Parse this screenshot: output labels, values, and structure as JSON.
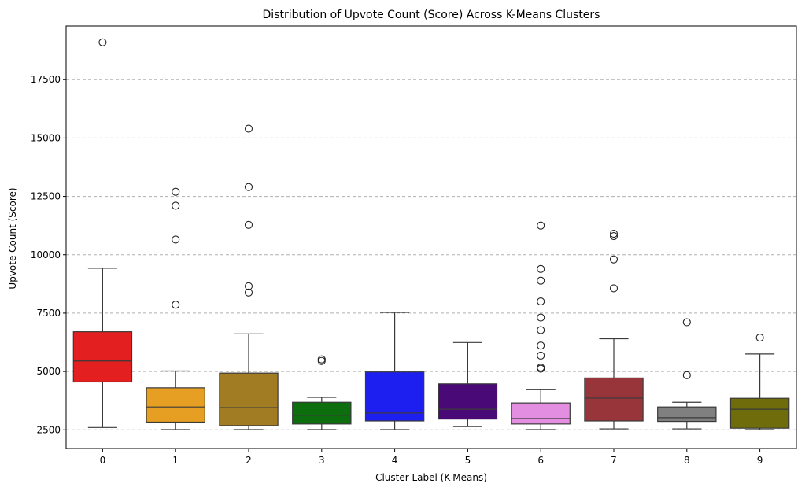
{
  "chart_data": {
    "type": "box",
    "title": "Distribution of Upvote Count (Score) Across K-Means Clusters",
    "xlabel": "Cluster Label (K-Means)",
    "ylabel": "Upvote Count (Score)",
    "ylim": [
      1700,
      19800
    ],
    "yticks": [
      2500,
      5000,
      7500,
      10000,
      12500,
      15000,
      17500
    ],
    "grid": "y-dashed",
    "categories": [
      "0",
      "1",
      "2",
      "3",
      "4",
      "5",
      "6",
      "7",
      "8",
      "9"
    ],
    "boxes": [
      {
        "category": "0",
        "color": "#e41f1f",
        "whisker_low": 2600,
        "q1": 4550,
        "median": 5450,
        "q3": 6700,
        "whisker_high": 9420,
        "outliers": [
          19100
        ]
      },
      {
        "category": "1",
        "color": "#e79f23",
        "whisker_low": 2510,
        "q1": 2830,
        "median": 3480,
        "q3": 4300,
        "whisker_high": 5020,
        "outliers": [
          7860,
          10650,
          12100,
          12700
        ]
      },
      {
        "category": "2",
        "color": "#a17c22",
        "whisker_low": 2510,
        "q1": 2680,
        "median": 3450,
        "q3": 4930,
        "whisker_high": 6610,
        "outliers": [
          8380,
          8650,
          11280,
          12900,
          15400
        ]
      },
      {
        "category": "3",
        "color": "#0c6e0c",
        "whisker_low": 2510,
        "q1": 2750,
        "median": 3120,
        "q3": 3680,
        "whisker_high": 3890,
        "outliers": [
          5450,
          5520
        ]
      },
      {
        "category": "4",
        "color": "#1d1ff0",
        "whisker_low": 2510,
        "q1": 2880,
        "median": 3220,
        "q3": 4980,
        "whisker_high": 7530,
        "outliers": []
      },
      {
        "category": "5",
        "color": "#490a78",
        "whisker_low": 2640,
        "q1": 2960,
        "median": 3380,
        "q3": 4470,
        "whisker_high": 6240,
        "outliers": []
      },
      {
        "category": "6",
        "color": "#e38ee0",
        "whisker_low": 2510,
        "q1": 2750,
        "median": 2980,
        "q3": 3650,
        "whisker_high": 4220,
        "outliers": [
          5120,
          5170,
          5680,
          6110,
          6770,
          7310,
          8000,
          8890,
          9390,
          11250
        ]
      },
      {
        "category": "7",
        "color": "#98353a",
        "whisker_low": 2540,
        "q1": 2880,
        "median": 3860,
        "q3": 4720,
        "whisker_high": 6400,
        "outliers": [
          8560,
          9800,
          10800,
          10900
        ]
      },
      {
        "category": "8",
        "color": "#808080",
        "whisker_low": 2540,
        "q1": 2860,
        "median": 3020,
        "q3": 3480,
        "whisker_high": 3680,
        "outliers": [
          4840,
          7110
        ]
      },
      {
        "category": "9",
        "color": "#6e6c0b",
        "whisker_low": 2510,
        "q1": 2570,
        "median": 3380,
        "q3": 3850,
        "whisker_high": 5750,
        "outliers": [
          6450
        ]
      }
    ]
  }
}
